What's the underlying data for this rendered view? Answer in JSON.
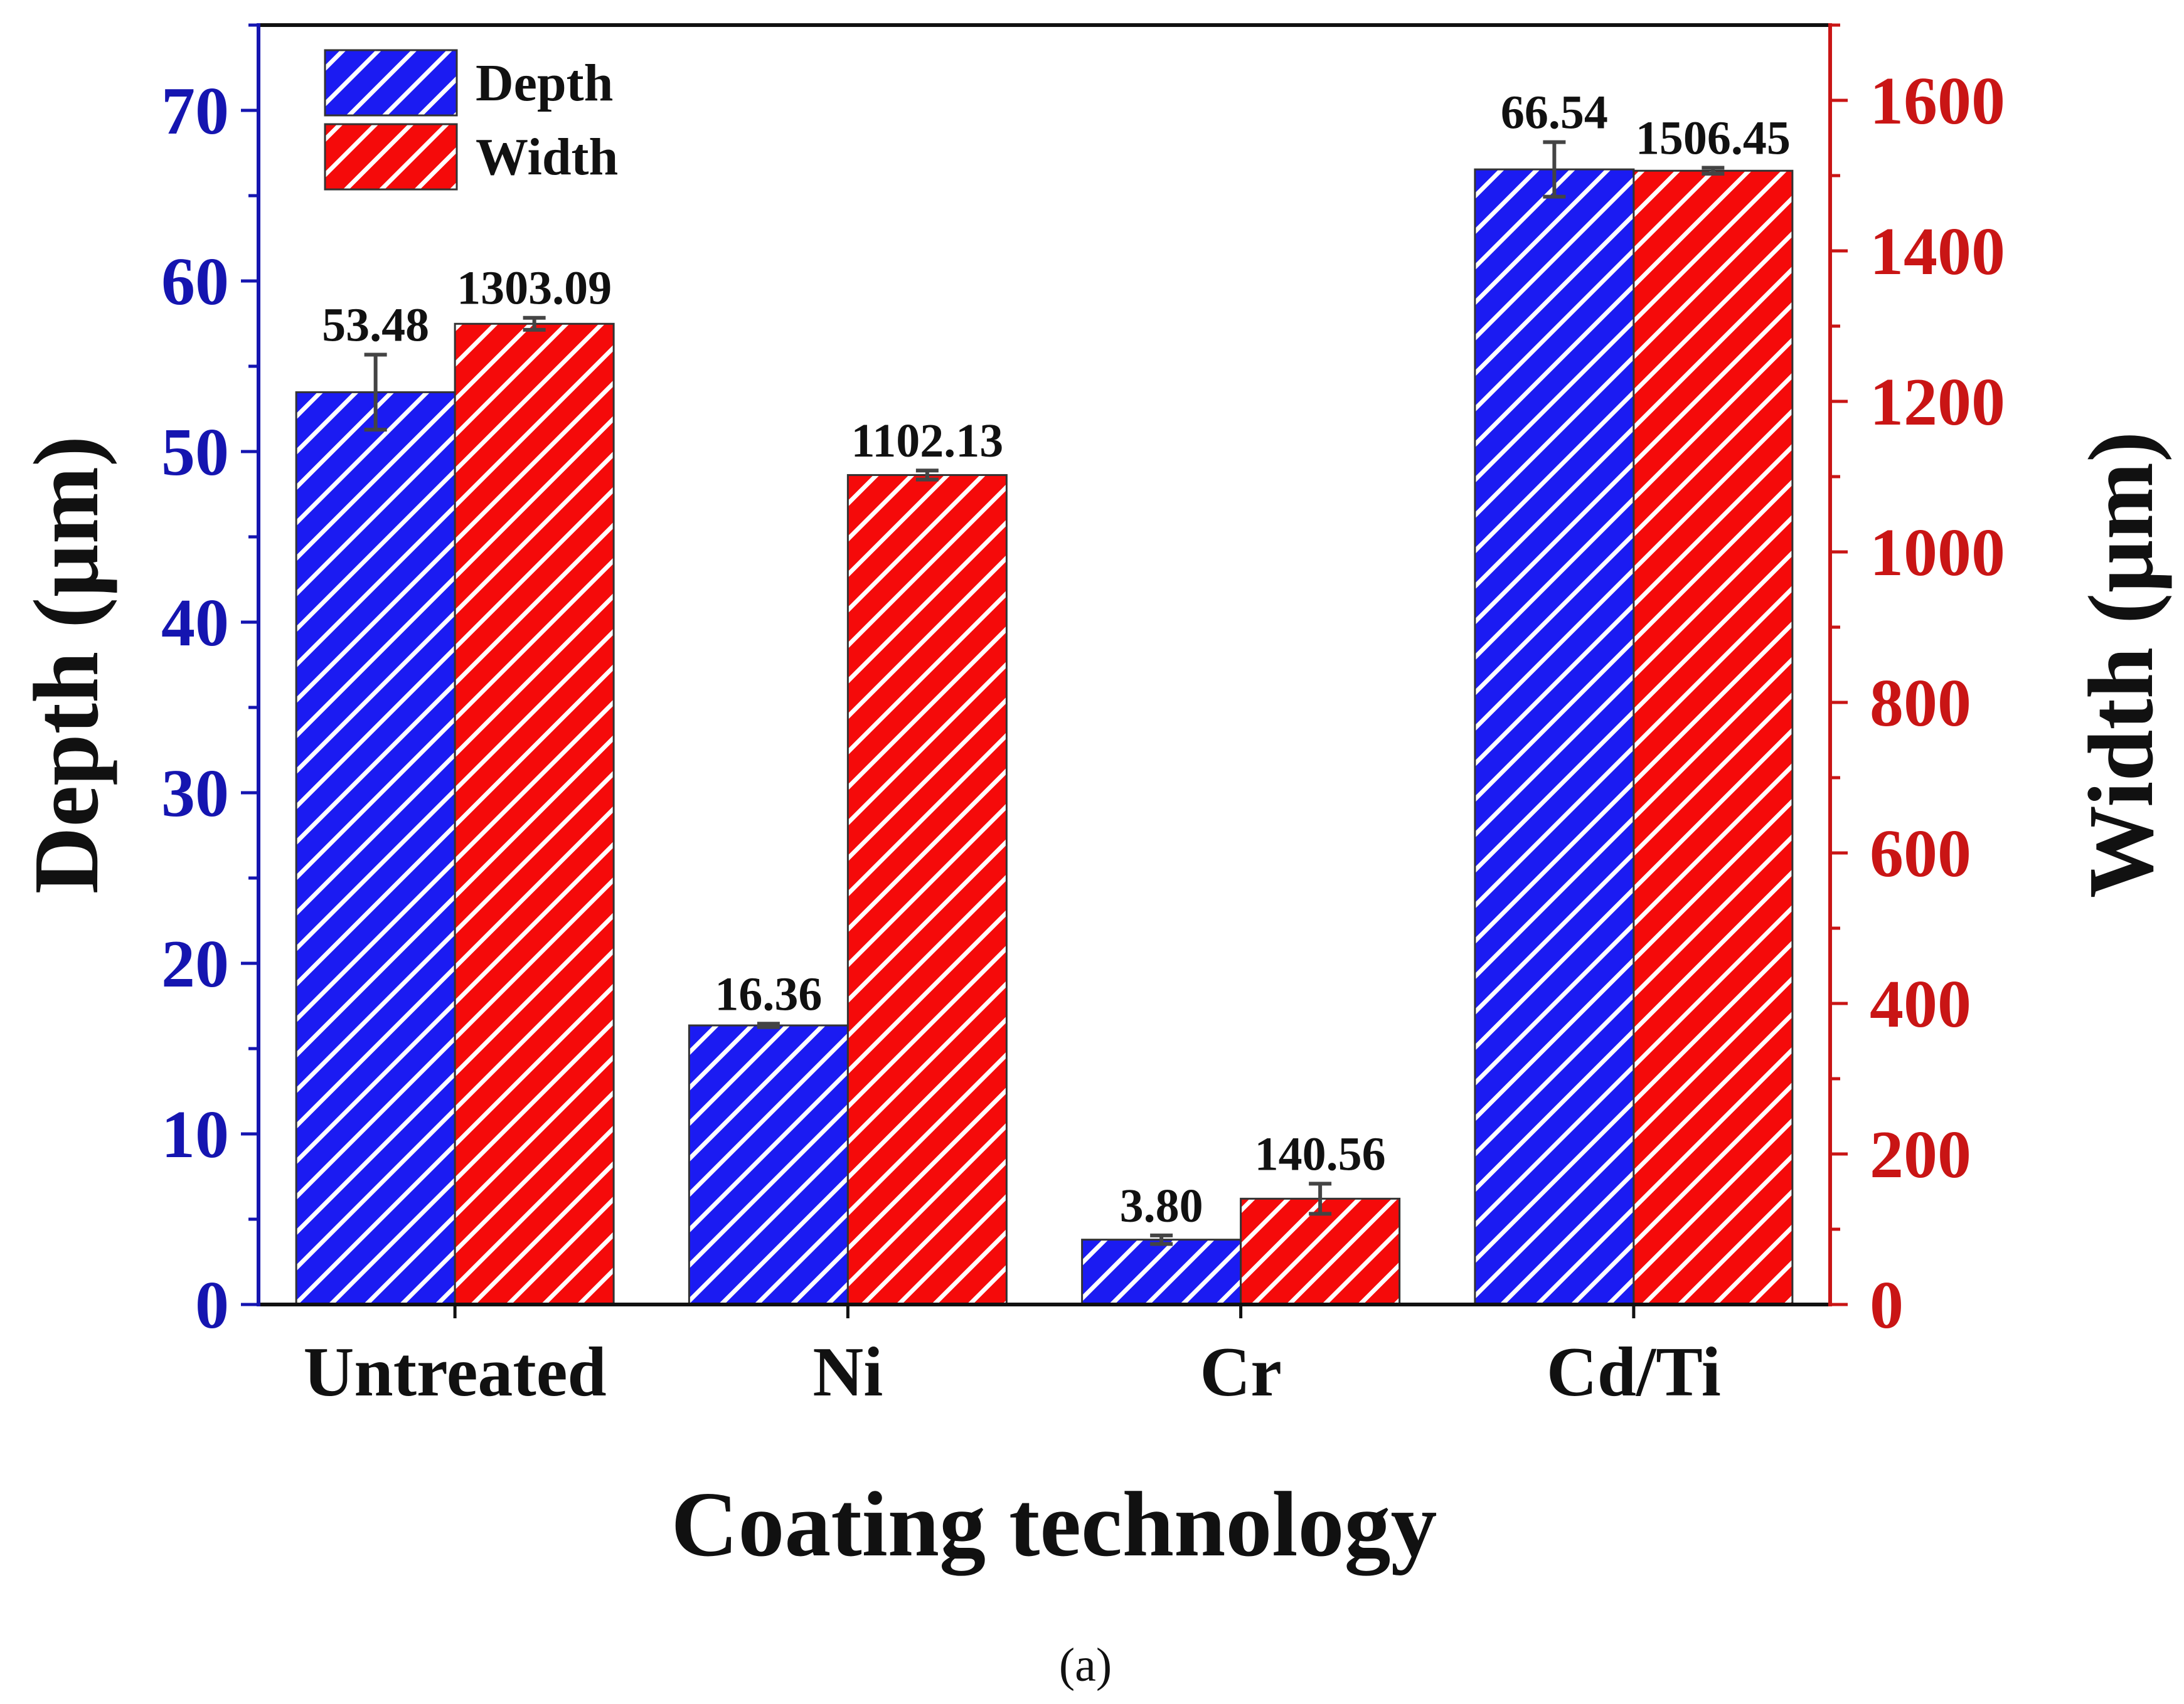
{
  "chart_data": {
    "type": "bar",
    "categories": [
      "Untreated",
      "Ni",
      "Cr",
      "Cd/Ti"
    ],
    "xlabel": "Coating technology",
    "caption": "(a)",
    "left_axis": {
      "label": "Depth (µm)",
      "range": [
        0,
        75
      ],
      "ticks": [
        0,
        10,
        20,
        30,
        40,
        50,
        60,
        70
      ],
      "color": "#1515b0"
    },
    "right_axis": {
      "label": "Width (µm)",
      "range": [
        0,
        1700
      ],
      "ticks": [
        0,
        200,
        400,
        600,
        800,
        1000,
        1200,
        1400,
        1600
      ],
      "color": "#c91515"
    },
    "legend": {
      "position": "top-left"
    },
    "series": [
      {
        "name": "Depth",
        "axis": "left",
        "color": "#1b1bf2",
        "values": [
          53.48,
          16.36,
          3.8,
          66.54
        ],
        "labels": [
          "53.48",
          "16.36",
          "3.80",
          "66.54"
        ],
        "errors": [
          2.2,
          0.1,
          0.25,
          1.6
        ]
      },
      {
        "name": "Width",
        "axis": "right",
        "color": "#f50a0a",
        "values": [
          1303.09,
          1102.13,
          140.56,
          1506.45
        ],
        "labels": [
          "1303.09",
          "1102.13",
          "140.56",
          "1506.45"
        ],
        "errors": [
          8,
          6,
          20,
          4
        ]
      }
    ]
  }
}
